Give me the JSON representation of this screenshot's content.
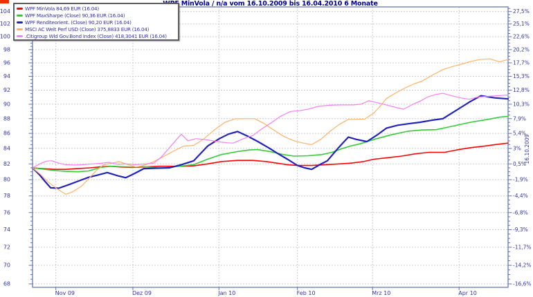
{
  "title": "WPF MinVola / n/a vom 16.10.2009 bis 16.04.2010 6 Monate",
  "axes": {
    "base_date_label": "16.10.2009",
    "left_tick_values": [
      104,
      102,
      100,
      98,
      96,
      94,
      92,
      90,
      88,
      86,
      84,
      82,
      80,
      78,
      76,
      74,
      72,
      70,
      68
    ],
    "right_tick_labels": [
      "27,5%",
      "25,1%",
      "22,6%",
      "20,2%",
      "17,7%",
      "15,3%",
      "12,8%",
      "10,3%",
      "7,9%",
      "5,4%",
      "3%",
      "0,5%",
      "-1,9%",
      "-4,4%",
      "-6,8%",
      "-9,3%",
      "-11,7%",
      "-14,2%",
      "-16,6%"
    ],
    "x_ticks": [
      {
        "label": "Nov 09",
        "f": 0.049
      },
      {
        "label": "Dez 09",
        "f": 0.211
      },
      {
        "label": "Jan 10",
        "f": 0.392
      },
      {
        "label": "Feb 10",
        "f": 0.557
      },
      {
        "label": "Mrz 10",
        "f": 0.715
      },
      {
        "label": "Apr 10",
        "f": 0.897
      }
    ]
  },
  "colors": {
    "frame": "#5c6fb5",
    "grid": "#cccccc",
    "axis_text": "#3333a0",
    "title_text": "#000099",
    "minvola": "#ff0000",
    "maxsharpe": "#33cc33",
    "rendite": "#2222bb",
    "msci": "#ffb266",
    "citigroup": "#f580f0"
  },
  "legend": {
    "items": [
      {
        "label": "WPF MinVola 84,69 EUR (16.04)",
        "color": "#ff0000"
      },
      {
        "label": "WPF MaxSharpe (Close) 90,36 EUR (16.04)",
        "color": "#33cc33"
      },
      {
        "label": "WPF Renditeorient. (Close) 90,20 EUR (16.04)",
        "color": "#2222bb"
      },
      {
        "label": "MSCI AC Welt Perf USD (Close) 375,8833 EUR (16.04)",
        "color": "#ffb266"
      },
      {
        "label": ".Citigroup Wld Gov.Bond Index (Close) 418,3041 EUR (16.04)",
        "color": "#f580f0"
      }
    ]
  },
  "chart_data": {
    "type": "line",
    "title": "WPF MinVola / n/a vom 16.10.2009 bis 16.04.2010 6 Monate",
    "xlabel": "",
    "ylabel": "",
    "x_range": {
      "start": "16.10.2009",
      "end": "16.04.2010"
    },
    "y_scale": "log",
    "ylim_left": [
      67.6,
      104.7
    ],
    "base_value": 81.55,
    "grid": true,
    "legend_position": "top-left",
    "series": [
      {
        "name": "WPF MinVola",
        "color": "#ff0000",
        "width": 1.6,
        "end_label": "84,69 EUR (16.04)",
        "points": [
          [
            0,
            81.5
          ],
          [
            0.019,
            81.4
          ],
          [
            0.045,
            81.3
          ],
          [
            0.07,
            81.3
          ],
          [
            0.095,
            81.4
          ],
          [
            0.121,
            81.5
          ],
          [
            0.146,
            81.65
          ],
          [
            0.164,
            81.7
          ],
          [
            0.186,
            81.6
          ],
          [
            0.208,
            81.55
          ],
          [
            0.234,
            81.6
          ],
          [
            0.266,
            81.7
          ],
          [
            0.295,
            81.7
          ],
          [
            0.317,
            81.7
          ],
          [
            0.339,
            81.75
          ],
          [
            0.368,
            82.0
          ],
          [
            0.397,
            82.3
          ],
          [
            0.431,
            82.45
          ],
          [
            0.463,
            82.45
          ],
          [
            0.492,
            82.3
          ],
          [
            0.514,
            82.1
          ],
          [
            0.536,
            81.9
          ],
          [
            0.557,
            81.8
          ],
          [
            0.587,
            81.8
          ],
          [
            0.616,
            81.9
          ],
          [
            0.645,
            82.0
          ],
          [
            0.67,
            82.1
          ],
          [
            0.696,
            82.3
          ],
          [
            0.718,
            82.6
          ],
          [
            0.747,
            82.8
          ],
          [
            0.776,
            83.0
          ],
          [
            0.805,
            83.3
          ],
          [
            0.834,
            83.5
          ],
          [
            0.867,
            83.5
          ],
          [
            0.892,
            83.8
          ],
          [
            0.921,
            84.1
          ],
          [
            0.95,
            84.3
          ],
          [
            0.972,
            84.5
          ],
          [
            1,
            84.7
          ]
        ]
      },
      {
        "name": "WPF MaxSharpe",
        "color": "#33cc33",
        "width": 1.6,
        "end_label": "90,36 EUR (16.04)",
        "points": [
          [
            0,
            81.5
          ],
          [
            0.026,
            81.3
          ],
          [
            0.048,
            81.15
          ],
          [
            0.07,
            81.05
          ],
          [
            0.095,
            81.0
          ],
          [
            0.118,
            81.1
          ],
          [
            0.143,
            81.55
          ],
          [
            0.164,
            81.7
          ],
          [
            0.186,
            81.65
          ],
          [
            0.211,
            81.6
          ],
          [
            0.234,
            81.65
          ],
          [
            0.255,
            81.55
          ],
          [
            0.269,
            81.45
          ],
          [
            0.293,
            81.6
          ],
          [
            0.317,
            81.75
          ],
          [
            0.339,
            81.9
          ],
          [
            0.368,
            82.6
          ],
          [
            0.397,
            83.2
          ],
          [
            0.431,
            83.6
          ],
          [
            0.456,
            83.8
          ],
          [
            0.474,
            83.85
          ],
          [
            0.499,
            83.6
          ],
          [
            0.528,
            83.2
          ],
          [
            0.55,
            83.0
          ],
          [
            0.579,
            83.05
          ],
          [
            0.608,
            83.2
          ],
          [
            0.63,
            83.5
          ],
          [
            0.652,
            84.0
          ],
          [
            0.67,
            84.35
          ],
          [
            0.688,
            84.6
          ],
          [
            0.718,
            85.2
          ],
          [
            0.754,
            85.8
          ],
          [
            0.79,
            86.3
          ],
          [
            0.819,
            86.45
          ],
          [
            0.849,
            86.5
          ],
          [
            0.885,
            87.0
          ],
          [
            0.921,
            87.5
          ],
          [
            0.958,
            87.9
          ],
          [
            0.982,
            88.2
          ],
          [
            1,
            88.3
          ]
        ]
      },
      {
        "name": "WPF Renditeorient.",
        "color": "#2222bb",
        "width": 2.2,
        "end_label": "90,20 EUR (16.04)",
        "points": [
          [
            0,
            81.5
          ],
          [
            0.015,
            80.6
          ],
          [
            0.026,
            79.8
          ],
          [
            0.038,
            79.0
          ],
          [
            0.055,
            78.95
          ],
          [
            0.077,
            79.4
          ],
          [
            0.095,
            79.8
          ],
          [
            0.118,
            80.3
          ],
          [
            0.138,
            80.6
          ],
          [
            0.157,
            80.9
          ],
          [
            0.179,
            80.5
          ],
          [
            0.196,
            80.25
          ],
          [
            0.215,
            80.8
          ],
          [
            0.234,
            81.4
          ],
          [
            0.259,
            81.45
          ],
          [
            0.288,
            81.5
          ],
          [
            0.313,
            81.9
          ],
          [
            0.339,
            82.4
          ],
          [
            0.368,
            84.3
          ],
          [
            0.393,
            85.3
          ],
          [
            0.412,
            85.9
          ],
          [
            0.431,
            86.25
          ],
          [
            0.453,
            85.6
          ],
          [
            0.474,
            84.9
          ],
          [
            0.496,
            84.1
          ],
          [
            0.514,
            83.4
          ],
          [
            0.536,
            82.6
          ],
          [
            0.557,
            81.8
          ],
          [
            0.572,
            81.5
          ],
          [
            0.587,
            81.3
          ],
          [
            0.604,
            81.9
          ],
          [
            0.62,
            82.4
          ],
          [
            0.642,
            84.0
          ],
          [
            0.664,
            85.5
          ],
          [
            0.681,
            85.2
          ],
          [
            0.703,
            84.9
          ],
          [
            0.725,
            85.8
          ],
          [
            0.744,
            86.7
          ],
          [
            0.768,
            87.1
          ],
          [
            0.79,
            87.3
          ],
          [
            0.815,
            87.5
          ],
          [
            0.841,
            87.8
          ],
          [
            0.863,
            88.0
          ],
          [
            0.885,
            88.9
          ],
          [
            0.902,
            89.6
          ],
          [
            0.921,
            90.4
          ],
          [
            0.943,
            91.2
          ],
          [
            0.972,
            90.9
          ],
          [
            1,
            90.75
          ]
        ]
      },
      {
        "name": "MSCI AC Welt Perf USD",
        "color": "#ffb266",
        "width": 1.2,
        "end_label": "375,8833 EUR (16.04)",
        "points": [
          [
            0,
            81.5
          ],
          [
            0.016,
            80.7
          ],
          [
            0.033,
            79.7
          ],
          [
            0.051,
            78.9
          ],
          [
            0.07,
            78.2
          ],
          [
            0.084,
            78.5
          ],
          [
            0.103,
            79.2
          ],
          [
            0.121,
            80.3
          ],
          [
            0.135,
            81.2
          ],
          [
            0.15,
            81.9
          ],
          [
            0.167,
            82.1
          ],
          [
            0.182,
            82.3
          ],
          [
            0.201,
            81.9
          ],
          [
            0.218,
            81.6
          ],
          [
            0.233,
            81.8
          ],
          [
            0.252,
            82.2
          ],
          [
            0.274,
            82.9
          ],
          [
            0.295,
            83.6
          ],
          [
            0.317,
            84.3
          ],
          [
            0.339,
            84.4
          ],
          [
            0.361,
            85.3
          ],
          [
            0.383,
            86.5
          ],
          [
            0.405,
            87.5
          ],
          [
            0.427,
            88.0
          ],
          [
            0.448,
            88.0
          ],
          [
            0.467,
            88.0
          ],
          [
            0.488,
            87.3
          ],
          [
            0.506,
            86.5
          ],
          [
            0.528,
            85.6
          ],
          [
            0.55,
            85.0
          ],
          [
            0.569,
            84.7
          ],
          [
            0.587,
            84.5
          ],
          [
            0.606,
            85.2
          ],
          [
            0.626,
            86.3
          ],
          [
            0.645,
            87.2
          ],
          [
            0.664,
            87.9
          ],
          [
            0.681,
            87.9
          ],
          [
            0.699,
            87.95
          ],
          [
            0.718,
            88.8
          ],
          [
            0.732,
            89.8
          ],
          [
            0.744,
            90.8
          ],
          [
            0.761,
            91.5
          ],
          [
            0.783,
            92.3
          ],
          [
            0.802,
            92.9
          ],
          [
            0.819,
            93.3
          ],
          [
            0.841,
            94.2
          ],
          [
            0.863,
            95.0
          ],
          [
            0.885,
            95.5
          ],
          [
            0.907,
            95.9
          ],
          [
            0.921,
            96.2
          ],
          [
            0.94,
            96.5
          ],
          [
            0.962,
            96.6
          ],
          [
            0.982,
            96.15
          ],
          [
            1,
            96.5
          ]
        ]
      },
      {
        "name": ".Citigroup Wld Gov.Bond Index",
        "color": "#f580f0",
        "width": 1.2,
        "end_label": "418,3041 EUR (16.04)",
        "points": [
          [
            0,
            81.5
          ],
          [
            0.015,
            82.0
          ],
          [
            0.029,
            82.35
          ],
          [
            0.041,
            82.4
          ],
          [
            0.055,
            82.1
          ],
          [
            0.07,
            81.9
          ],
          [
            0.089,
            81.85
          ],
          [
            0.106,
            81.9
          ],
          [
            0.125,
            82.0
          ],
          [
            0.146,
            82.1
          ],
          [
            0.16,
            82.2
          ],
          [
            0.179,
            81.95
          ],
          [
            0.198,
            82.0
          ],
          [
            0.218,
            81.9
          ],
          [
            0.237,
            82.0
          ],
          [
            0.255,
            82.1
          ],
          [
            0.271,
            82.9
          ],
          [
            0.288,
            84.1
          ],
          [
            0.303,
            85.2
          ],
          [
            0.313,
            85.9
          ],
          [
            0.327,
            85.0
          ],
          [
            0.344,
            85.3
          ],
          [
            0.365,
            85.15
          ],
          [
            0.39,
            84.9
          ],
          [
            0.408,
            84.75
          ],
          [
            0.422,
            84.7
          ],
          [
            0.444,
            85.3
          ],
          [
            0.463,
            85.7
          ],
          [
            0.482,
            86.6
          ],
          [
            0.499,
            87.3
          ],
          [
            0.521,
            88.3
          ],
          [
            0.543,
            89.0
          ],
          [
            0.562,
            89.1
          ],
          [
            0.579,
            89.3
          ],
          [
            0.601,
            89.7
          ],
          [
            0.623,
            89.85
          ],
          [
            0.648,
            89.9
          ],
          [
            0.674,
            89.9
          ],
          [
            0.691,
            90.0
          ],
          [
            0.707,
            90.5
          ],
          [
            0.725,
            90.2
          ],
          [
            0.744,
            89.9
          ],
          [
            0.761,
            89.6
          ],
          [
            0.78,
            89.3
          ],
          [
            0.8,
            90.0
          ],
          [
            0.817,
            90.5
          ],
          [
            0.83,
            91.0
          ],
          [
            0.849,
            91.4
          ],
          [
            0.863,
            91.55
          ],
          [
            0.881,
            91.2
          ],
          [
            0.9,
            90.9
          ],
          [
            0.918,
            90.7
          ],
          [
            0.936,
            91.0
          ],
          [
            0.955,
            91.1
          ],
          [
            0.975,
            91.2
          ],
          [
            1,
            91.3
          ]
        ]
      }
    ]
  }
}
